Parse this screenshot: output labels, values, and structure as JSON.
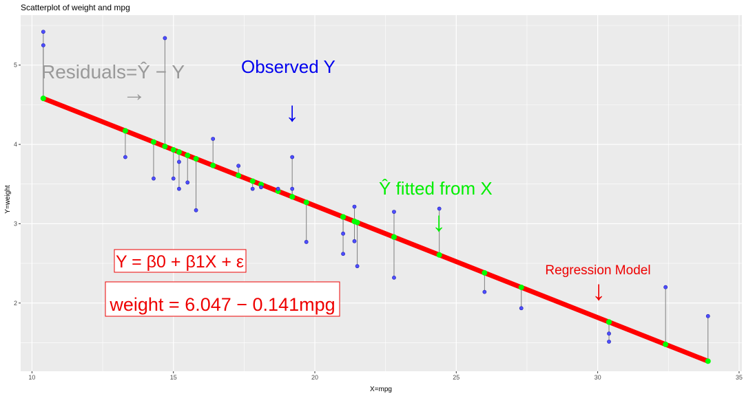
{
  "chart_data": {
    "type": "scatter",
    "title": "Scatterplot of weight and mpg",
    "xlabel": "X=mpg",
    "ylabel": "Y=weight",
    "xlim": [
      9.6,
      35.1
    ],
    "ylim": [
      1.14,
      5.63
    ],
    "x_ticks": [
      10,
      15,
      20,
      25,
      30,
      35
    ],
    "y_ticks": [
      2,
      3,
      4,
      5
    ],
    "grid": true,
    "regression": {
      "intercept": 6.047,
      "slope": -0.141
    },
    "observed": {
      "x": [
        10.4,
        10.4,
        13.3,
        14.3,
        14.7,
        15.0,
        15.2,
        15.2,
        15.5,
        15.8,
        16.4,
        17.3,
        17.8,
        18.1,
        18.7,
        19.2,
        19.2,
        19.7,
        21.0,
        21.0,
        21.4,
        21.4,
        21.5,
        22.8,
        22.8,
        24.4,
        26.0,
        27.3,
        30.4,
        30.4,
        32.4,
        33.9
      ],
      "y": [
        5.25,
        5.42,
        3.84,
        3.57,
        5.34,
        3.57,
        3.44,
        3.78,
        3.52,
        3.17,
        4.07,
        3.73,
        3.44,
        3.46,
        3.44,
        3.44,
        3.84,
        2.77,
        2.62,
        2.875,
        3.215,
        2.78,
        2.465,
        3.15,
        2.32,
        3.19,
        2.14,
        1.935,
        1.615,
        1.513,
        2.2,
        1.835
      ]
    },
    "annotations": {
      "residuals": "Residuals=Ŷ − Y",
      "residuals_arrow": "→",
      "observed": "Observed Y",
      "observed_arrow": "↓",
      "fitted": "Ŷ fitted from X",
      "fitted_arrow": "↓",
      "regression_model": "Regression Model",
      "regression_arrow": "↓",
      "model_eq": "Y = β0 + β1X + ε",
      "fitted_eq": "weight = 6.047 − 0.141mpg"
    },
    "colors": {
      "panel_bg": "#ebebeb",
      "grid": "#ffffff",
      "observed_point": "#4d4dff",
      "fitted_point": "#00ff00",
      "regression_line": "#ff0000",
      "residual_line": "#7f7f7f",
      "residuals_text": "#999999",
      "observed_text": "#0000ee",
      "fitted_text": "#00ee00",
      "model_text": "#ee0000"
    }
  }
}
